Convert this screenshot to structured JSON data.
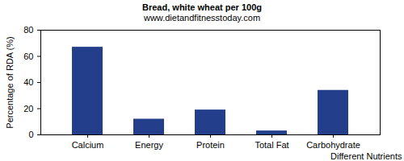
{
  "chart_data": {
    "type": "bar",
    "title": "Bread, white wheat per 100g",
    "subtitle": "www.dietandfitnesstoday.com",
    "x_label": "Different Nutrients",
    "y_label": "Percentage of RDA (%)",
    "categories": [
      "Calcium",
      "Energy",
      "Protein",
      "Total Fat",
      "Carbohydrate"
    ],
    "values": [
      67,
      12,
      19,
      3,
      34
    ],
    "color": "#233e8b",
    "ylim": [
      0,
      80
    ],
    "yticks": [
      0,
      20,
      40,
      60,
      80
    ],
    "grid": false
  }
}
